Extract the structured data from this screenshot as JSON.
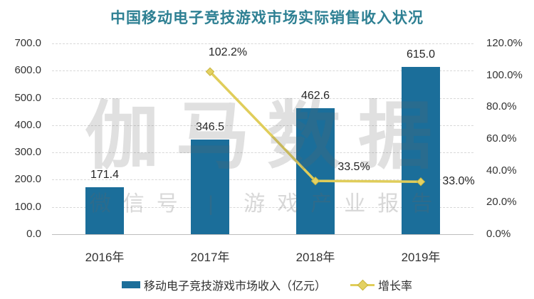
{
  "title": "中国移动电子竞技游戏市场实际销售收入状况",
  "watermark": {
    "main": "伽马数据",
    "sub": "微信号 | 游戏产业报告"
  },
  "legend": [
    {
      "label": "移动电子竞技游戏市场收入（亿元）"
    },
    {
      "label": "增长率"
    }
  ],
  "colors": {
    "title": "#2e8093",
    "bar": "#1b6e9a",
    "line": "#e0cd5a",
    "marker_fill": "#e3d162",
    "marker_edge": "#c9b53e",
    "grid": "#d8d8d8",
    "baseline": "#bdbdbd",
    "tick_text": "#333333",
    "label_text": "#262626"
  },
  "chart_data": {
    "type": "bar+line combo",
    "title": "中国移动电子竞技游戏市场实际销售收入状况",
    "categories": [
      "2016年",
      "2017年",
      "2018年",
      "2019年"
    ],
    "series": [
      {
        "name": "移动电子竞技游戏市场收入（亿元）",
        "type": "bar",
        "axis": "left",
        "values": [
          171.4,
          346.5,
          462.6,
          615.0
        ],
        "labels": [
          "171.4",
          "346.5",
          "462.6",
          "615.0"
        ]
      },
      {
        "name": "增长率",
        "type": "line",
        "axis": "right",
        "values": [
          null,
          102.2,
          33.5,
          33.0
        ],
        "labels": [
          null,
          "102.2%",
          "33.5%",
          "33.0%"
        ]
      }
    ],
    "left_axis": {
      "min": 0,
      "max": 700,
      "step": 100,
      "tick_labels": [
        "0.0",
        "100.0",
        "200.0",
        "300.0",
        "400.0",
        "500.0",
        "600.0",
        "700.0"
      ]
    },
    "right_axis": {
      "min": 0,
      "max": 120,
      "step": 20,
      "tick_labels": [
        "0.0%",
        "20.0%",
        "40.0%",
        "60.0%",
        "80.0%",
        "100.0%",
        "120.0%"
      ]
    },
    "grid": "horizontal dashed",
    "legend_position": "bottom"
  }
}
